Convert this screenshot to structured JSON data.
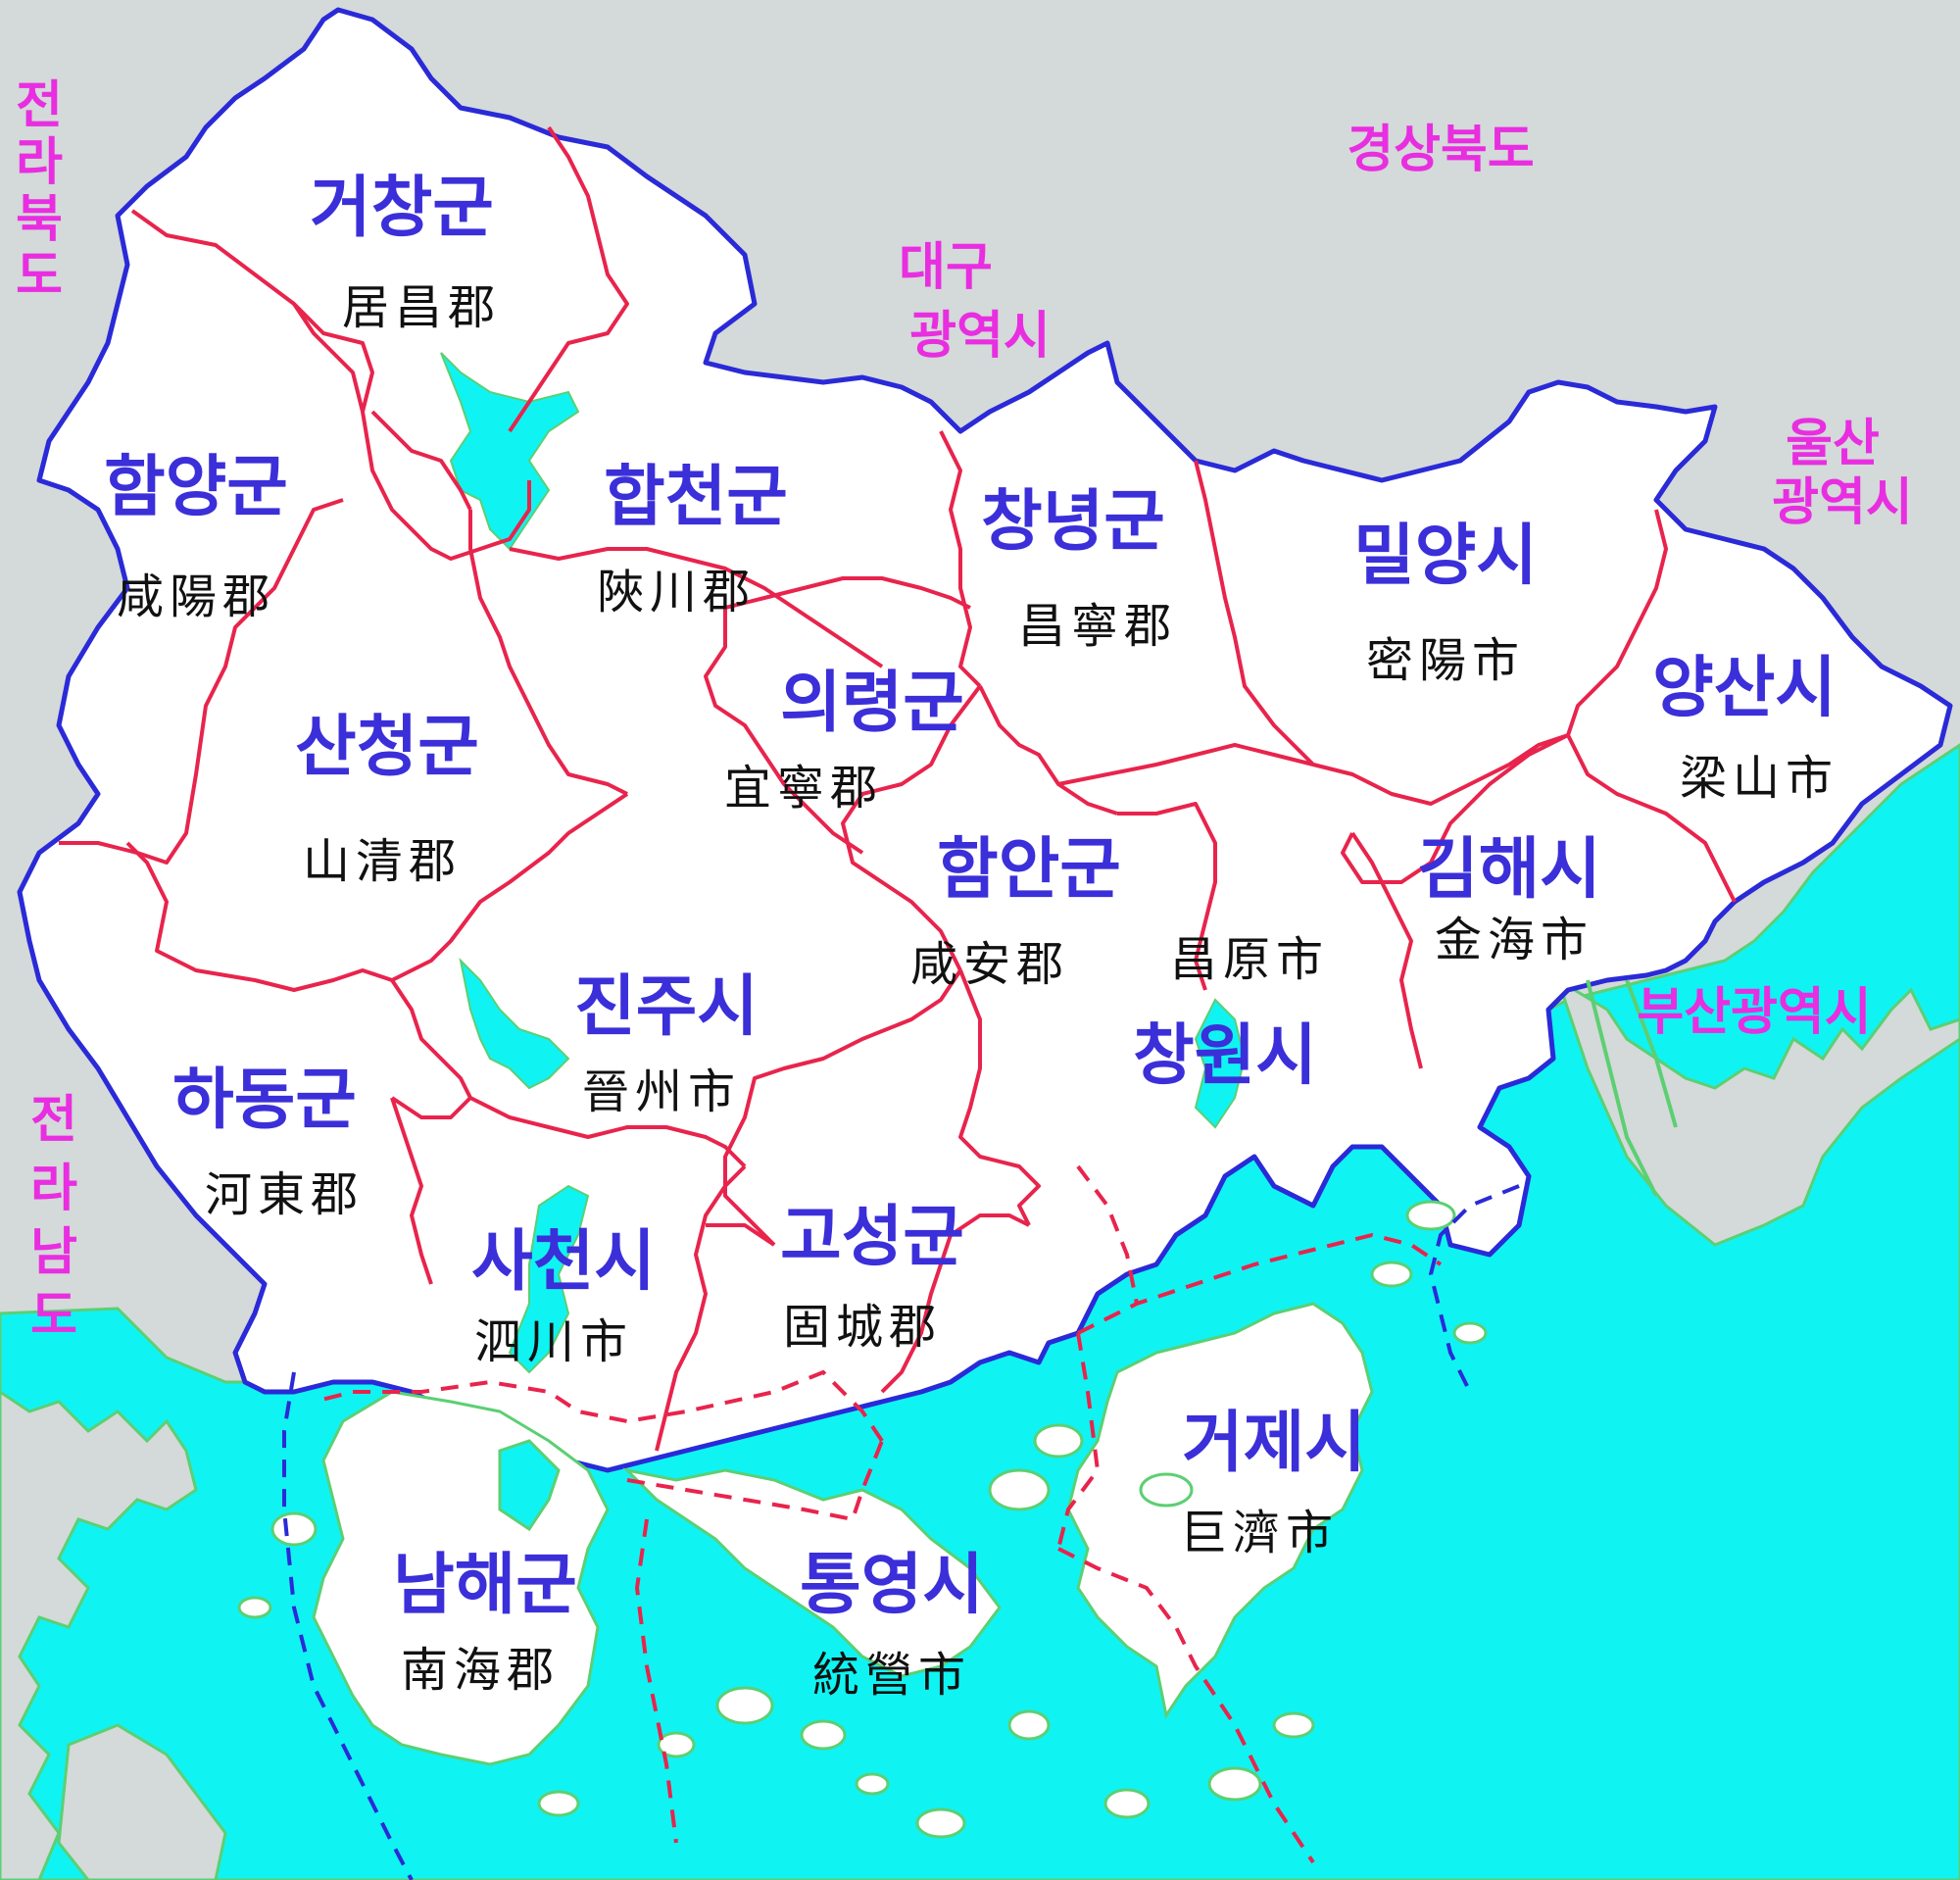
{
  "colors": {
    "background": "#d4d9d9",
    "sea": "#10f3f3",
    "coast": "#5ccf73",
    "land": "#ffffff",
    "province_border": "#2a2ad8",
    "county_border": "#e8244c",
    "korean_label": "#3b2fd9",
    "hanja_label": "#111111",
    "neighbor_label": "#e82ee0"
  },
  "regions": [
    {
      "key": "geochang",
      "name": "거창군",
      "hanja": "居昌郡"
    },
    {
      "key": "hamyang",
      "name": "함양군",
      "hanja": "咸陽郡"
    },
    {
      "key": "hapcheon",
      "name": "합천군",
      "hanja": "陜川郡"
    },
    {
      "key": "changnyeong",
      "name": "창녕군",
      "hanja": "昌寧郡"
    },
    {
      "key": "miryang",
      "name": "밀양시",
      "hanja": "密陽市"
    },
    {
      "key": "yangsan",
      "name": "양산시",
      "hanja": "梁山市"
    },
    {
      "key": "sancheong",
      "name": "산청군",
      "hanja": "山清郡"
    },
    {
      "key": "uiryeong",
      "name": "의령군",
      "hanja": "宜寧郡"
    },
    {
      "key": "haman",
      "name": "함안군",
      "hanja": "咸安郡"
    },
    {
      "key": "changwon",
      "name": "창원시",
      "hanja": "昌原市"
    },
    {
      "key": "gimhae",
      "name": "김해시",
      "hanja": "金海市"
    },
    {
      "key": "jinju",
      "name": "진주시",
      "hanja": "晉州市"
    },
    {
      "key": "hadong",
      "name": "하동군",
      "hanja": "河東郡"
    },
    {
      "key": "sacheon",
      "name": "사천시",
      "hanja": "泗川市"
    },
    {
      "key": "goseong",
      "name": "고성군",
      "hanja": "固城郡"
    },
    {
      "key": "geoje",
      "name": "거제시",
      "hanja": "巨濟市"
    },
    {
      "key": "namhae",
      "name": "남해군",
      "hanja": "南海郡"
    },
    {
      "key": "tongyeong",
      "name": "통영시",
      "hanja": "統營市"
    }
  ],
  "neighbors": {
    "jeonbuk": [
      "전",
      "라",
      "북",
      "도"
    ],
    "jeonnam": [
      "전",
      "라",
      "남",
      "도"
    ],
    "gyeongbuk": "경상북도",
    "daegu": [
      "대구",
      "광역시"
    ],
    "ulsan": [
      "울산",
      "광역시"
    ],
    "busan": "부산광역시"
  }
}
